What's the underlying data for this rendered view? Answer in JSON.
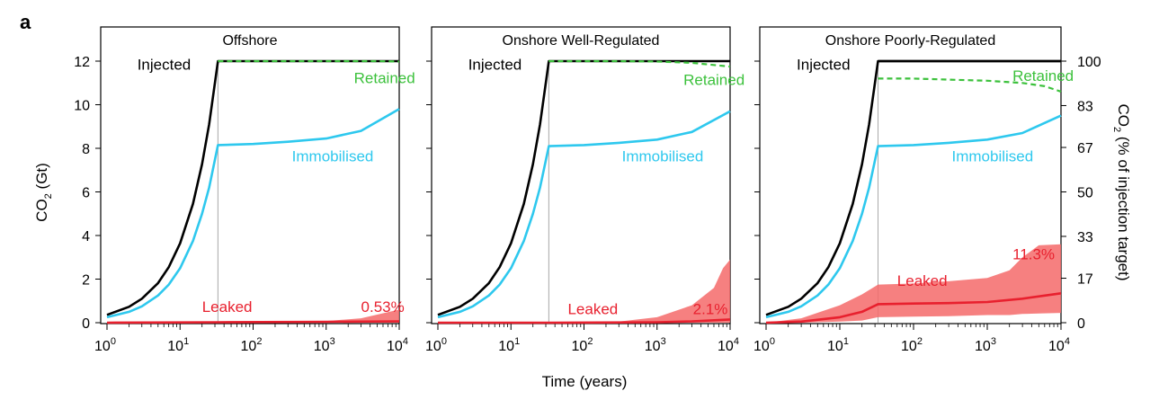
{
  "figure": {
    "panel_letter": "a",
    "xlabel": "Time (years)",
    "ylabel_left": "CO2 (Gt)",
    "ylabel_right": "CO2 (% of injection target)"
  },
  "colors": {
    "injected": "#000000",
    "retained": "#3cc13c",
    "immobilised": "#2ec8ee",
    "leaked": "#e8202e",
    "leaked_band": "#f46a6a",
    "vline": "#a8a8a8"
  },
  "chart_data": [
    {
      "type": "line",
      "title": "Offshore",
      "xscale": "log",
      "xlim": [
        1,
        10000
      ],
      "ylim": [
        0,
        13
      ],
      "x_ticks": [
        1,
        10,
        100,
        1000,
        10000
      ],
      "x_tick_labels": [
        "10^0",
        "10^1",
        "10^2",
        "10^3",
        "10^4"
      ],
      "y_ticks": [
        0,
        2,
        4,
        6,
        8,
        10,
        12
      ],
      "y_tick_labels": [
        "0",
        "2",
        "4",
        "6",
        "8",
        "10",
        "12"
      ],
      "injection_end_year": 33,
      "series": [
        {
          "name": "Injected",
          "key": "injected",
          "style": "solid",
          "x": [
            1,
            2,
            3,
            5,
            7,
            10,
            15,
            20,
            25,
            33,
            100,
            1000,
            10000
          ],
          "y": [
            0.36,
            0.73,
            1.1,
            1.82,
            2.55,
            3.64,
            5.45,
            7.27,
            9.1,
            12.0,
            12.0,
            12.0,
            12.0
          ]
        },
        {
          "name": "Retained",
          "key": "retained",
          "style": "dashed",
          "x": [
            33,
            100,
            1000,
            5000,
            10000
          ],
          "y": [
            12.0,
            12.0,
            12.0,
            12.0,
            11.98
          ]
        },
        {
          "name": "Immobilised",
          "key": "immobilised",
          "style": "solid",
          "x": [
            1,
            2,
            3,
            5,
            7,
            10,
            15,
            20,
            25,
            33,
            100,
            300,
            1000,
            3000,
            10000
          ],
          "y": [
            0.25,
            0.5,
            0.75,
            1.25,
            1.75,
            2.5,
            3.75,
            5.0,
            6.2,
            8.15,
            8.2,
            8.3,
            8.45,
            8.8,
            9.8
          ]
        },
        {
          "name": "Leaked",
          "key": "leaked",
          "style": "solid",
          "x": [
            1,
            33,
            1000,
            10000
          ],
          "y": [
            0.0,
            0.02,
            0.04,
            0.06
          ]
        }
      ],
      "leaked_band": {
        "x": [
          1,
          33,
          1000,
          3000,
          10000
        ],
        "lower": [
          0.0,
          0.0,
          0.0,
          0.0,
          0.0
        ],
        "upper": [
          0.0,
          0.03,
          0.08,
          0.2,
          0.6
        ]
      },
      "annotations": [
        {
          "text": "Injected",
          "x": 2.6,
          "y": 11.6,
          "key": "injected"
        },
        {
          "text": "Retained",
          "x": 2400,
          "y": 11.0,
          "key": "retained"
        },
        {
          "text": "Immobilised",
          "x": 340,
          "y": 7.4,
          "key": "immobilised"
        },
        {
          "text": "Leaked",
          "x": 20,
          "y": 0.5,
          "key": "leaked"
        },
        {
          "text": "0.53%",
          "x": 3000,
          "y": 0.5,
          "key": "leaked"
        }
      ]
    },
    {
      "type": "line",
      "title": "Onshore Well-Regulated",
      "xscale": "log",
      "xlim": [
        1,
        10000
      ],
      "ylim": [
        0,
        13
      ],
      "x_ticks": [
        1,
        10,
        100,
        1000,
        10000
      ],
      "x_tick_labels": [
        "10^0",
        "10^1",
        "10^2",
        "10^3",
        "10^4"
      ],
      "y_ticks": [
        0,
        2,
        4,
        6,
        8,
        10,
        12
      ],
      "injection_end_year": 33,
      "series": [
        {
          "name": "Injected",
          "key": "injected",
          "style": "solid",
          "x": [
            1,
            2,
            3,
            5,
            7,
            10,
            15,
            20,
            25,
            33,
            100,
            1000,
            10000
          ],
          "y": [
            0.36,
            0.73,
            1.1,
            1.82,
            2.55,
            3.64,
            5.45,
            7.27,
            9.1,
            12.0,
            12.0,
            12.0,
            12.0
          ]
        },
        {
          "name": "Retained",
          "key": "retained",
          "style": "dashed",
          "x": [
            33,
            100,
            300,
            1000,
            3000,
            10000
          ],
          "y": [
            12.0,
            12.0,
            12.0,
            11.98,
            11.92,
            11.75
          ]
        },
        {
          "name": "Immobilised",
          "key": "immobilised",
          "style": "solid",
          "x": [
            1,
            2,
            3,
            5,
            7,
            10,
            15,
            20,
            25,
            33,
            100,
            300,
            1000,
            3000,
            10000
          ],
          "y": [
            0.25,
            0.5,
            0.75,
            1.25,
            1.75,
            2.5,
            3.75,
            5.0,
            6.2,
            8.1,
            8.15,
            8.25,
            8.4,
            8.75,
            9.7
          ]
        },
        {
          "name": "Leaked",
          "key": "leaked",
          "style": "solid",
          "x": [
            1,
            33,
            1000,
            3000,
            10000
          ],
          "y": [
            0.0,
            0.0,
            0.02,
            0.06,
            0.15
          ]
        }
      ],
      "leaked_band": {
        "x": [
          1,
          33,
          300,
          1000,
          3000,
          6000,
          8000,
          10000
        ],
        "lower": [
          0.0,
          0.0,
          0.0,
          0.0,
          0.0,
          0.0,
          0.0,
          0.0
        ],
        "upper": [
          0.0,
          0.0,
          0.05,
          0.25,
          0.8,
          1.6,
          2.5,
          2.9
        ]
      },
      "annotations": [
        {
          "text": "Injected",
          "x": 2.6,
          "y": 11.6,
          "key": "injected"
        },
        {
          "text": "Retained",
          "x": 2300,
          "y": 10.9,
          "key": "retained"
        },
        {
          "text": "Immobilised",
          "x": 330,
          "y": 7.4,
          "key": "immobilised"
        },
        {
          "text": "Leaked",
          "x": 60,
          "y": 0.4,
          "key": "leaked"
        },
        {
          "text": "2.1%",
          "x": 3100,
          "y": 0.4,
          "key": "leaked"
        }
      ]
    },
    {
      "type": "line",
      "title": "Onshore Poorly-Regulated",
      "xscale": "log",
      "xlim": [
        1,
        10000
      ],
      "ylim": [
        0,
        13
      ],
      "x_ticks": [
        1,
        10,
        100,
        1000,
        10000
      ],
      "x_tick_labels": [
        "10^0",
        "10^1",
        "10^2",
        "10^3",
        "10^4"
      ],
      "y_ticks": [
        0,
        2,
        4,
        6,
        8,
        10,
        12
      ],
      "y2_ticks": [
        0,
        17,
        33,
        50,
        67,
        83,
        100
      ],
      "y2_tick_labels": [
        "0",
        "17",
        "33",
        "50",
        "67",
        "83",
        "100"
      ],
      "y2lim": [
        0,
        108.3
      ],
      "injection_end_year": 33,
      "series": [
        {
          "name": "Injected",
          "key": "injected",
          "style": "solid",
          "x": [
            1,
            2,
            3,
            5,
            7,
            10,
            15,
            20,
            25,
            33,
            100,
            1000,
            10000
          ],
          "y": [
            0.36,
            0.73,
            1.1,
            1.82,
            2.55,
            3.64,
            5.45,
            7.27,
            9.1,
            12.0,
            12.0,
            12.0,
            12.0
          ]
        },
        {
          "name": "Retained",
          "key": "retained",
          "style": "dashed",
          "x": [
            33,
            100,
            300,
            1000,
            3000,
            6000,
            10000
          ],
          "y": [
            11.2,
            11.2,
            11.15,
            11.1,
            11.0,
            10.85,
            10.6
          ]
        },
        {
          "name": "Immobilised",
          "key": "immobilised",
          "style": "solid",
          "x": [
            1,
            2,
            3,
            5,
            7,
            10,
            15,
            20,
            25,
            33,
            100,
            300,
            1000,
            3000,
            10000
          ],
          "y": [
            0.25,
            0.5,
            0.75,
            1.25,
            1.75,
            2.5,
            3.75,
            5.0,
            6.2,
            8.1,
            8.15,
            8.25,
            8.4,
            8.7,
            9.5
          ]
        },
        {
          "name": "Leaked",
          "key": "leaked",
          "style": "solid",
          "x": [
            1,
            3,
            10,
            20,
            33,
            100,
            300,
            1000,
            3000,
            10000
          ],
          "y": [
            0.0,
            0.05,
            0.25,
            0.5,
            0.85,
            0.88,
            0.9,
            0.95,
            1.1,
            1.35
          ]
        },
        {
          "name": "Injected",
          "key": "injected",
          "style": "solid",
          "role": "top",
          "x": [
            33,
            10000
          ],
          "y": [
            12.0,
            12.0
          ]
        }
      ],
      "leaked_band": {
        "x": [
          1,
          3,
          10,
          20,
          33,
          100,
          300,
          1000,
          2000,
          3000,
          5000,
          10000
        ],
        "lower": [
          0.0,
          0.0,
          0.05,
          0.1,
          0.25,
          0.28,
          0.3,
          0.35,
          0.35,
          0.4,
          0.42,
          0.45
        ],
        "upper": [
          0.0,
          0.2,
          0.8,
          1.3,
          1.75,
          1.8,
          1.9,
          2.05,
          2.4,
          3.0,
          3.55,
          3.6
        ]
      },
      "annotations": [
        {
          "text": "Injected",
          "x": 2.6,
          "y": 11.6,
          "key": "injected"
        },
        {
          "text": "Retained",
          "x": 2200,
          "y": 11.1,
          "key": "retained"
        },
        {
          "text": "Immobilised",
          "x": 330,
          "y": 7.4,
          "key": "immobilised"
        },
        {
          "text": "Leaked",
          "x": 60,
          "y": 1.7,
          "key": "leaked"
        },
        {
          "text": "11.3%",
          "x": 2200,
          "y": 2.9,
          "key": "leaked"
        }
      ]
    }
  ]
}
